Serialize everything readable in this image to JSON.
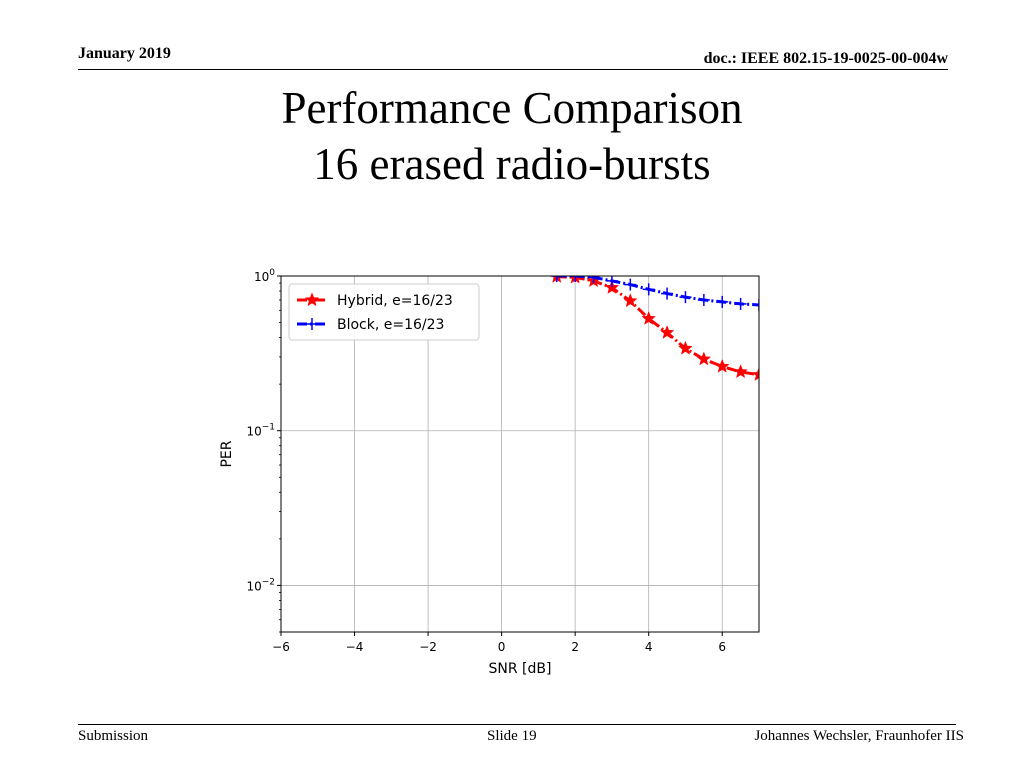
{
  "header": {
    "date": "January 2019",
    "doc": "doc.: IEEE 802.15-19-0025-00-004w"
  },
  "slide": {
    "title_line1": "Performance Comparison",
    "title_line2": "16 erased radio-bursts"
  },
  "footer": {
    "left": "Submission",
    "center": "Slide 19",
    "right": "Johannes Wechsler, Fraunhofer IIS"
  },
  "chart_data": {
    "type": "line",
    "xlabel": "SNR [dB]",
    "ylabel": "PER",
    "xlim": [
      -6,
      7
    ],
    "ylim": [
      0.005,
      1
    ],
    "yscale": "log",
    "grid": true,
    "legend_position": "top-left",
    "x_ticks": [
      -6,
      -4,
      -2,
      0,
      2,
      4,
      6
    ],
    "x_tick_labels": [
      "−6",
      "−4",
      "−2",
      "0",
      "2",
      "4",
      "6"
    ],
    "y_ticks": [
      1,
      0.1,
      0.01
    ],
    "y_tick_labels": [
      {
        "base": "10",
        "exp": "0"
      },
      {
        "base": "10",
        "exp": "−1"
      },
      {
        "base": "10",
        "exp": "−2"
      }
    ],
    "series": [
      {
        "name": "Hybrid, e=16/23",
        "color": "#ff0000",
        "marker": "star",
        "line_style": "dash-dot",
        "x": [
          1.5,
          2.0,
          2.5,
          3.0,
          3.5,
          4.0,
          4.5,
          5.0,
          5.5,
          6.0,
          6.5,
          7.0
        ],
        "y": [
          0.99,
          0.98,
          0.93,
          0.84,
          0.69,
          0.53,
          0.43,
          0.34,
          0.29,
          0.26,
          0.24,
          0.23
        ]
      },
      {
        "name": "Block, e=16/23",
        "color": "#0000ff",
        "marker": "plus",
        "line_style": "dash-dot",
        "x": [
          1.5,
          2.0,
          2.5,
          3.0,
          3.5,
          4.0,
          4.5,
          5.0,
          5.5,
          6.0,
          6.5,
          7.0
        ],
        "y": [
          1.0,
          1.0,
          0.98,
          0.93,
          0.88,
          0.82,
          0.77,
          0.73,
          0.7,
          0.68,
          0.66,
          0.65
        ]
      }
    ]
  }
}
